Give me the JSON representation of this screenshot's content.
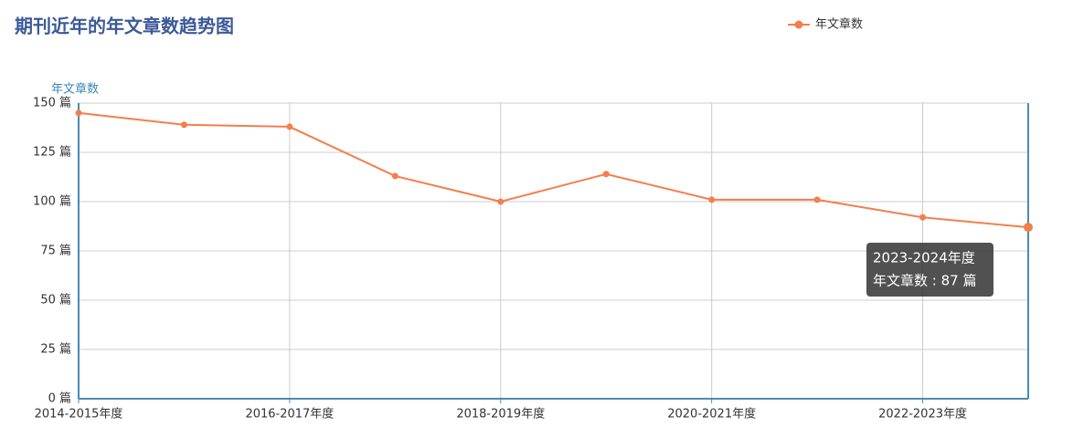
{
  "chart_data": {
    "type": "line",
    "title": "期刊近年的年文章数趋势图",
    "y_axis_label": "年文章数",
    "categories": [
      "2014-2015年度",
      null,
      "2016-2017年度",
      null,
      "2018-2019年度",
      null,
      "2020-2021年度",
      null,
      "2022-2023年度",
      null
    ],
    "series": [
      {
        "name": "年文章数",
        "color": "#f47e4c",
        "values": [
          145,
          139,
          138,
          113,
          100,
          114,
          101,
          101,
          92,
          87
        ]
      }
    ],
    "ylim": [
      0,
      150
    ],
    "yticks": [
      {
        "value": 0,
        "label": "0 篇"
      },
      {
        "value": 25,
        "label": "25 篇"
      },
      {
        "value": 50,
        "label": "50 篇"
      },
      {
        "value": 75,
        "label": "75 篇"
      },
      {
        "value": 100,
        "label": "100 篇"
      },
      {
        "value": 125,
        "label": "125 篇"
      },
      {
        "value": 150,
        "label": "150 篇"
      }
    ],
    "grid": true,
    "legend": "top-right",
    "tooltip": {
      "title": "2023-2024年度",
      "text": "年文章数 : 87 篇"
    }
  }
}
